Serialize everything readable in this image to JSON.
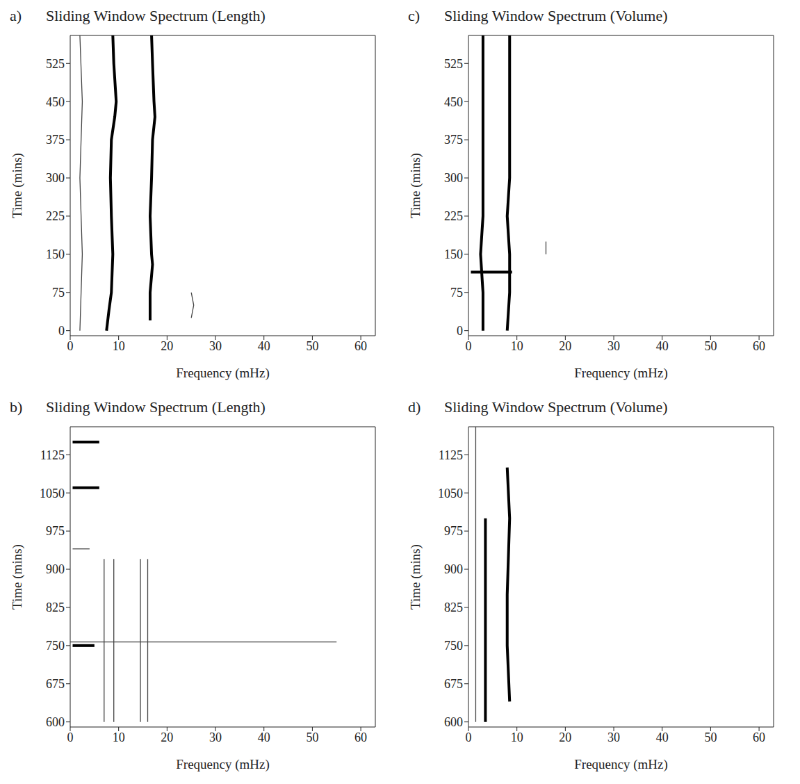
{
  "chart_data": [
    {
      "panel": "a)",
      "type": "line",
      "title": "Sliding Window Spectrum (Length)",
      "x_label": "Frequency (mHz)",
      "y_label": "Time (mins)",
      "xlim": [
        0,
        63
      ],
      "xticks": [
        0,
        10,
        20,
        30,
        40,
        50,
        60
      ],
      "ylim": [
        -10,
        580
      ],
      "yticks": [
        0,
        75,
        150,
        225,
        300,
        375,
        450,
        525
      ],
      "series": [
        {
          "color": "#000000",
          "line_style": "bold",
          "x": [
            7.5,
            8,
            8.5,
            8.8,
            8.5,
            8.3,
            8.5,
            9.2,
            9.5,
            9,
            8.8
          ],
          "values": [
            0,
            40,
            75,
            150,
            225,
            300,
            375,
            420,
            450,
            525,
            580
          ]
        },
        {
          "color": "#000000",
          "line_style": "bold",
          "x": [
            16.5,
            16.5,
            17,
            16.8,
            16.5,
            16.8,
            17,
            17.5,
            17.3,
            17,
            16.8
          ],
          "values": [
            20,
            75,
            130,
            150,
            225,
            300,
            375,
            420,
            450,
            525,
            580
          ]
        },
        {
          "color": "#444444",
          "line_style": "thin",
          "x": [
            25,
            25.5,
            25
          ],
          "values": [
            25,
            50,
            75
          ]
        },
        {
          "color": "#444444",
          "line_style": "thin",
          "x": [
            2,
            2.5,
            2,
            2.5,
            2
          ],
          "values": [
            0,
            150,
            300,
            450,
            580
          ]
        }
      ]
    },
    {
      "panel": "b)",
      "type": "line",
      "title": "Sliding Window Spectrum (Length)",
      "x_label": "Frequency (mHz)",
      "y_label": "Time (mins)",
      "xlim": [
        0,
        63
      ],
      "xticks": [
        0,
        10,
        20,
        30,
        40,
        50,
        60
      ],
      "ylim": [
        590,
        1180
      ],
      "yticks": [
        600,
        675,
        750,
        825,
        900,
        975,
        1050,
        1125
      ],
      "series": [
        {
          "color": "#444444",
          "line_style": "thin",
          "x": [
            7,
            7
          ],
          "values": [
            600,
            920
          ]
        },
        {
          "color": "#444444",
          "line_style": "thin",
          "x": [
            9,
            9
          ],
          "values": [
            600,
            920
          ]
        },
        {
          "color": "#444444",
          "line_style": "thin",
          "x": [
            14.5,
            14.5
          ],
          "values": [
            600,
            920
          ]
        },
        {
          "color": "#444444",
          "line_style": "thin",
          "x": [
            16,
            16
          ],
          "values": [
            600,
            920
          ]
        },
        {
          "color": "#444444",
          "line_style": "thin",
          "x": [
            0,
            55
          ],
          "values": [
            757,
            757
          ]
        },
        {
          "color": "#000000",
          "line_style": "bold",
          "x": [
            0.5,
            5
          ],
          "values": [
            750,
            750
          ]
        },
        {
          "color": "#000000",
          "line_style": "bold",
          "x": [
            0.5,
            6
          ],
          "values": [
            1060,
            1060
          ]
        },
        {
          "color": "#000000",
          "line_style": "bold",
          "x": [
            0.5,
            6
          ],
          "values": [
            1150,
            1150
          ]
        },
        {
          "color": "#444444",
          "line_style": "thin",
          "x": [
            0.5,
            4
          ],
          "values": [
            940,
            940
          ]
        }
      ]
    },
    {
      "panel": "c)",
      "type": "line",
      "title": "Sliding Window Spectrum (Volume)",
      "x_label": "Frequency (mHz)",
      "y_label": "Time (mins)",
      "xlim": [
        0,
        63
      ],
      "xticks": [
        0,
        10,
        20,
        30,
        40,
        50,
        60
      ],
      "ylim": [
        -10,
        580
      ],
      "yticks": [
        0,
        75,
        150,
        225,
        300,
        375,
        450,
        525
      ],
      "series": [
        {
          "color": "#000000",
          "line_style": "bold",
          "x": [
            3,
            3,
            2.5,
            3,
            3,
            3,
            3,
            3
          ],
          "values": [
            0,
            75,
            150,
            225,
            300,
            375,
            450,
            580
          ]
        },
        {
          "color": "#000000",
          "line_style": "bold",
          "x": [
            8,
            8.5,
            8.5,
            8,
            8.5,
            8.5,
            8.5,
            8.5
          ],
          "values": [
            0,
            75,
            150,
            225,
            300,
            375,
            450,
            580
          ]
        },
        {
          "color": "#000000",
          "line_style": "bold",
          "x": [
            0.5,
            9
          ],
          "values": [
            115,
            115
          ]
        },
        {
          "color": "#444444",
          "line_style": "thin",
          "x": [
            16,
            16
          ],
          "values": [
            150,
            175
          ]
        }
      ]
    },
    {
      "panel": "d)",
      "type": "line",
      "title": "Sliding Window Spectrum (Volume)",
      "x_label": "Frequency (mHz)",
      "y_label": "Time (mins)",
      "xlim": [
        0,
        63
      ],
      "xticks": [
        0,
        10,
        20,
        30,
        40,
        50,
        60
      ],
      "ylim": [
        590,
        1180
      ],
      "yticks": [
        600,
        675,
        750,
        825,
        900,
        975,
        1050,
        1125
      ],
      "series": [
        {
          "color": "#000000",
          "line_style": "bold",
          "x": [
            3.5,
            3.5,
            3.5,
            3.5,
            3.5
          ],
          "values": [
            600,
            700,
            800,
            900,
            1000
          ]
        },
        {
          "color": "#000000",
          "line_style": "bold",
          "x": [
            8.5,
            8,
            8,
            8.5,
            8
          ],
          "values": [
            640,
            750,
            850,
            1000,
            1100
          ]
        },
        {
          "color": "#444444",
          "line_style": "thin",
          "x": [
            1.5,
            1.5
          ],
          "values": [
            600,
            1180
          ]
        }
      ]
    }
  ]
}
